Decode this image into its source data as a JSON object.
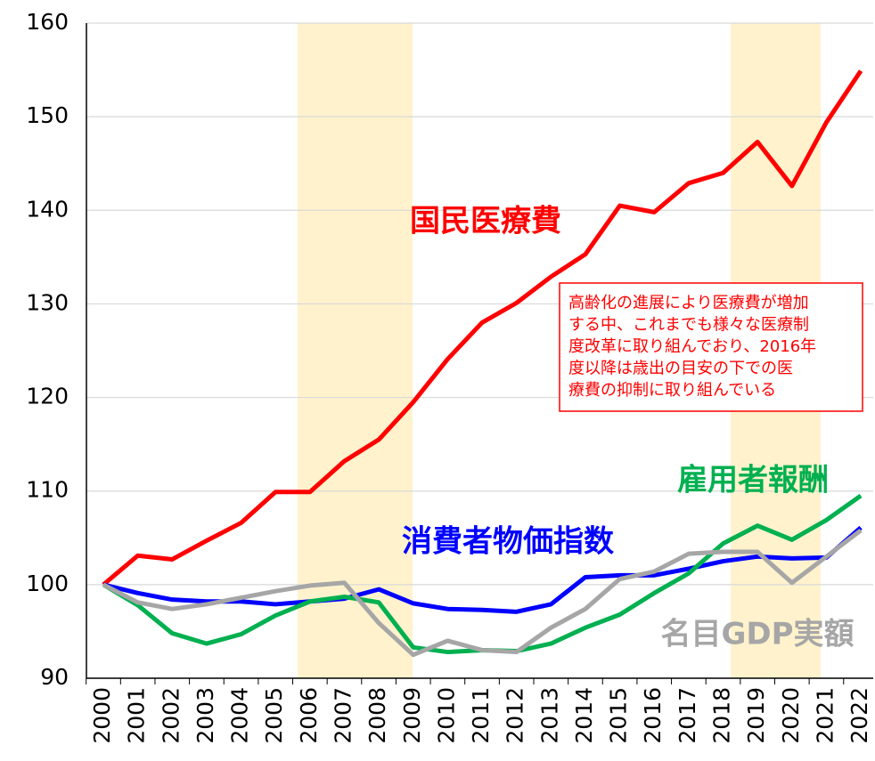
{
  "chart_data": {
    "type": "line",
    "categories": [
      "2000",
      "2001",
      "2002",
      "2003",
      "2004",
      "2005",
      "2006",
      "2007",
      "2008",
      "2009",
      "2010",
      "2011",
      "2012",
      "2013",
      "2014",
      "2015",
      "2016",
      "2017",
      "2018",
      "2019",
      "2020",
      "2021",
      "2022"
    ],
    "series": [
      {
        "name": "国民医療費",
        "color": "#ff0000",
        "values": [
          100,
          103.1,
          102.7,
          104.7,
          106.6,
          109.9,
          109.9,
          113.2,
          115.5,
          119.5,
          124.1,
          128,
          130.1,
          132.9,
          135.3,
          140.5,
          139.8,
          142.9,
          144,
          147.3,
          142.6,
          149.4,
          154.9
        ]
      },
      {
        "name": "消費者物価指数",
        "color": "#0000ff",
        "values": [
          100,
          99.1,
          98.4,
          98.2,
          98.2,
          97.9,
          98.2,
          98.5,
          99.5,
          98,
          97.4,
          97.3,
          97.1,
          97.9,
          100.8,
          101,
          101,
          101.7,
          102.5,
          103,
          102.8,
          102.9,
          106.1
        ]
      },
      {
        "name": "雇用者報酬",
        "color": "#00b050",
        "values": [
          100,
          97.8,
          94.8,
          93.7,
          94.7,
          96.7,
          98.2,
          98.7,
          98.1,
          93.3,
          92.8,
          93,
          92.9,
          93.7,
          95.4,
          96.8,
          99.1,
          101.2,
          104.4,
          106.3,
          104.8,
          106.9,
          109.5
        ]
      },
      {
        "name": "名目GDP実額",
        "color": "#a6a6a6",
        "values": [
          100,
          98.1,
          97.4,
          97.9,
          98.6,
          99.3,
          99.9,
          100.2,
          95.9,
          92.5,
          94,
          93,
          92.8,
          95.4,
          97.4,
          100.6,
          101.4,
          103.3,
          103.5,
          103.5,
          100.2,
          103,
          105.8
        ]
      }
    ],
    "annotation": [
      "高齢化の進展により医療費が増加",
      "する中、これまでも様々な医療制",
      "度改革に取り組んでおり、2016年",
      "度以降は歳出の目安の下での医",
      "療費の抑制に取り組んでいる"
    ],
    "ylim": [
      90,
      160
    ],
    "yticks": [
      90,
      100,
      110,
      120,
      130,
      140,
      150,
      160
    ],
    "grid": true
  }
}
